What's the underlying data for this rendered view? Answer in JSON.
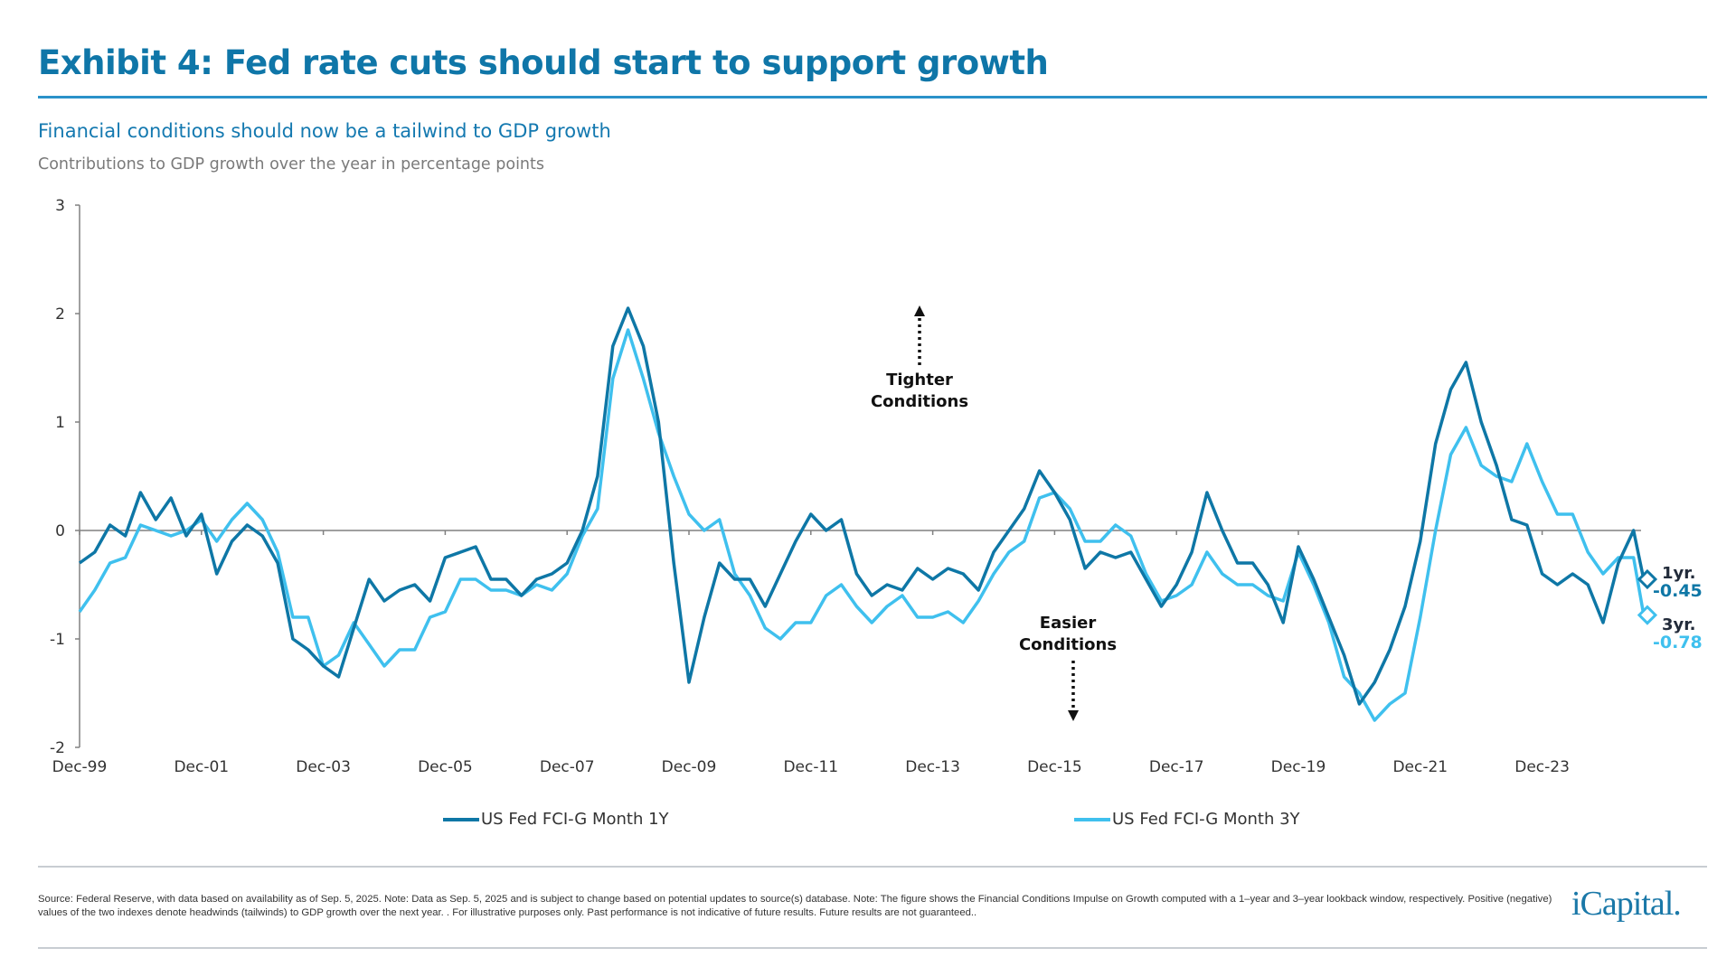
{
  "header": {
    "title": "Exhibit 4: Fed rate cuts should start to support growth",
    "subtitle": "Financial conditions should now be a tailwind to GDP growth",
    "description": "Contributions to GDP growth over the year in percentage points"
  },
  "colors": {
    "title": "#0f76a8",
    "series_1y": "#0e77a6",
    "series_3y": "#3fc0ee",
    "axis": "#808080"
  },
  "chart_data": {
    "type": "line",
    "ylim": [
      -2,
      3
    ],
    "yticks": [
      "3",
      "2",
      "1",
      "0",
      "-1",
      "-2"
    ],
    "xticks": [
      "Dec-99",
      "Dec-01",
      "Dec-03",
      "Dec-05",
      "Dec-07",
      "Dec-09",
      "Dec-11",
      "Dec-13",
      "Dec-15",
      "Dec-17",
      "Dec-19",
      "Dec-21",
      "Dec-23"
    ],
    "grid": false,
    "legend_position": "bottom",
    "x": [
      "1999-12",
      "2000-03",
      "2000-06",
      "2000-09",
      "2000-12",
      "2001-03",
      "2001-06",
      "2001-09",
      "2001-12",
      "2002-03",
      "2002-06",
      "2002-09",
      "2002-12",
      "2003-03",
      "2003-06",
      "2003-09",
      "2003-12",
      "2004-03",
      "2004-06",
      "2004-09",
      "2004-12",
      "2005-03",
      "2005-06",
      "2005-09",
      "2005-12",
      "2006-03",
      "2006-06",
      "2006-09",
      "2006-12",
      "2007-03",
      "2007-06",
      "2007-09",
      "2007-12",
      "2008-03",
      "2008-06",
      "2008-09",
      "2008-12",
      "2009-03",
      "2009-06",
      "2009-09",
      "2009-12",
      "2010-03",
      "2010-06",
      "2010-09",
      "2010-12",
      "2011-03",
      "2011-06",
      "2011-09",
      "2011-12",
      "2012-03",
      "2012-06",
      "2012-09",
      "2012-12",
      "2013-03",
      "2013-06",
      "2013-09",
      "2013-12",
      "2014-03",
      "2014-06",
      "2014-09",
      "2014-12",
      "2015-03",
      "2015-06",
      "2015-09",
      "2015-12",
      "2016-03",
      "2016-06",
      "2016-09",
      "2016-12",
      "2017-03",
      "2017-06",
      "2017-09",
      "2017-12",
      "2018-03",
      "2018-06",
      "2018-09",
      "2018-12",
      "2019-03",
      "2019-06",
      "2019-09",
      "2019-12",
      "2020-03",
      "2020-06",
      "2020-09",
      "2020-12",
      "2021-03",
      "2021-06",
      "2021-09",
      "2021-12",
      "2022-03",
      "2022-06",
      "2022-09",
      "2022-12",
      "2023-03",
      "2023-06",
      "2023-09",
      "2023-12",
      "2024-03",
      "2024-06",
      "2024-09",
      "2024-12",
      "2025-03",
      "2025-06",
      "2025-08"
    ],
    "series": [
      {
        "name": "US Fed FCI-G Month 1Y",
        "values": [
          -0.3,
          -0.2,
          0.05,
          -0.05,
          0.35,
          0.1,
          0.3,
          -0.05,
          0.15,
          -0.4,
          -0.1,
          0.05,
          -0.05,
          -0.3,
          -1.0,
          -1.1,
          -1.25,
          -1.35,
          -0.9,
          -0.45,
          -0.65,
          -0.55,
          -0.5,
          -0.65,
          -0.25,
          -0.2,
          -0.15,
          -0.45,
          -0.45,
          -0.6,
          -0.45,
          -0.4,
          -0.3,
          0.0,
          0.5,
          1.7,
          2.05,
          1.7,
          1.0,
          -0.3,
          -1.4,
          -0.8,
          -0.3,
          -0.45,
          -0.45,
          -0.7,
          -0.4,
          -0.1,
          0.15,
          0.0,
          0.1,
          -0.4,
          -0.6,
          -0.5,
          -0.55,
          -0.35,
          -0.45,
          -0.35,
          -0.4,
          -0.55,
          -0.2,
          0.0,
          0.2,
          0.55,
          0.35,
          0.1,
          -0.35,
          -0.2,
          -0.25,
          -0.2,
          -0.45,
          -0.7,
          -0.5,
          -0.2,
          0.35,
          0.0,
          -0.3,
          -0.3,
          -0.5,
          -0.85,
          -0.15,
          -0.45,
          -0.8,
          -1.15,
          -1.6,
          -1.4,
          -1.1,
          -0.7,
          -0.1,
          0.8,
          1.3,
          1.55,
          1.0,
          0.6,
          0.1,
          0.05,
          -0.4,
          -0.5,
          -0.4,
          -0.5,
          -0.85,
          -0.3,
          0.0,
          -0.45
        ]
      },
      {
        "name": "US Fed FCI-G Month 3Y",
        "values": [
          -0.75,
          -0.55,
          -0.3,
          -0.25,
          0.05,
          0.0,
          -0.05,
          0.0,
          0.1,
          -0.1,
          0.1,
          0.25,
          0.1,
          -0.2,
          -0.8,
          -0.8,
          -1.25,
          -1.15,
          -0.85,
          -1.05,
          -1.25,
          -1.1,
          -1.1,
          -0.8,
          -0.75,
          -0.45,
          -0.45,
          -0.55,
          -0.55,
          -0.6,
          -0.5,
          -0.55,
          -0.4,
          -0.05,
          0.2,
          1.4,
          1.85,
          1.4,
          0.9,
          0.5,
          0.15,
          0.0,
          0.1,
          -0.4,
          -0.6,
          -0.9,
          -1.0,
          -0.85,
          -0.85,
          -0.6,
          -0.5,
          -0.7,
          -0.85,
          -0.7,
          -0.6,
          -0.8,
          -0.8,
          -0.75,
          -0.85,
          -0.65,
          -0.4,
          -0.2,
          -0.1,
          0.3,
          0.35,
          0.2,
          -0.1,
          -0.1,
          0.05,
          -0.05,
          -0.4,
          -0.65,
          -0.6,
          -0.5,
          -0.2,
          -0.4,
          -0.5,
          -0.5,
          -0.6,
          -0.65,
          -0.2,
          -0.5,
          -0.85,
          -1.35,
          -1.5,
          -1.75,
          -1.6,
          -1.5,
          -0.8,
          0.0,
          0.7,
          0.95,
          0.6,
          0.5,
          0.45,
          0.8,
          0.45,
          0.15,
          0.15,
          -0.2,
          -0.4,
          -0.25,
          -0.25,
          -0.78
        ]
      }
    ],
    "annotations": {
      "tighter": [
        "Tighter",
        "Conditions"
      ],
      "easier": [
        "Easier",
        "Conditions"
      ],
      "end_1y_label": "1yr.",
      "end_1y_value": "-0.45",
      "end_3y_label": "3yr.",
      "end_3y_value": "-0.78"
    }
  },
  "footer": {
    "source": "Source: Federal Reserve, with data based on availability as of Sep. 5, 2025. Note: Data as Sep. 5, 2025 and is subject to change based on potential updates to source(s) database. Note: The figure shows the Financial Conditions Impulse on Growth computed with a 1–year and 3–year lookback window, respectively. Positive (negative) values of the two indexes denote headwinds (tailwinds) to GDP growth over the next year. . For illustrative purposes only. Past performance is not indicative of future results. Future results are not guaranteed..",
    "logo": "iCapital."
  }
}
